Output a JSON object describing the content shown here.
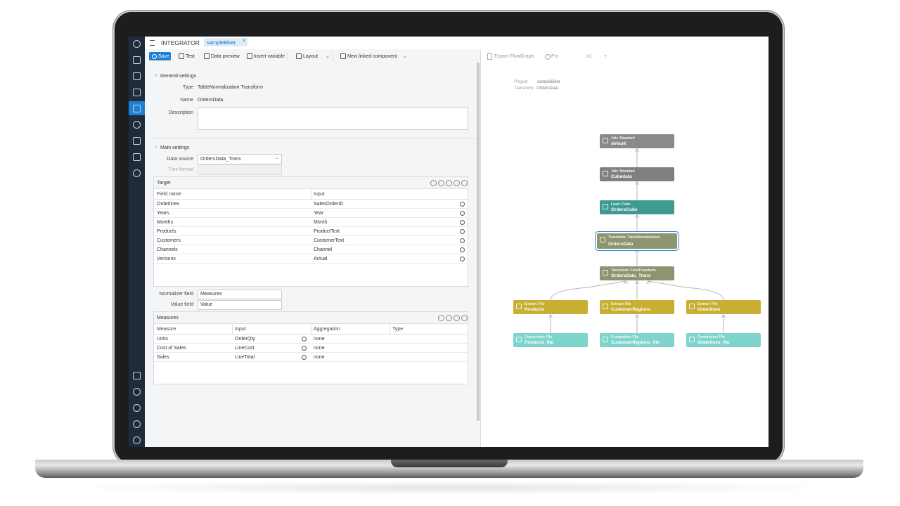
{
  "app": {
    "name": "INTEGRATOR",
    "tab": "sampleBiker",
    "tab_close": "×"
  },
  "toolbar": [
    "Save",
    "Test",
    "Data preview",
    "Insert variable",
    "Layout",
    "New linked component"
  ],
  "general_settings": {
    "title": "General settings",
    "type_label": "Type",
    "type_value": "TableNormalization Transform",
    "name_label": "Name",
    "name_value": "OrdersData",
    "description_label": "Description"
  },
  "main_settings": {
    "title": "Main settings",
    "data_source_label": "Data source",
    "data_source_value": "OrdersData_Trans",
    "tree_format_label": "Tree format"
  },
  "target": {
    "title": "Target",
    "columns": [
      "Field name",
      "Input"
    ],
    "rows": [
      [
        "Orderlines",
        "SalesOrderID"
      ],
      [
        "Years",
        "Year"
      ],
      [
        "Months",
        "Month"
      ],
      [
        "Products",
        "ProductText"
      ],
      [
        "Customers",
        "CustomerText"
      ],
      [
        "Channels",
        "Channel"
      ],
      [
        "Versions",
        "Actual"
      ]
    ]
  },
  "normalizer": {
    "normalizer_field_label": "Normalizer field",
    "normalizer_field_value": "Measures",
    "value_field_label": "Value field",
    "value_field_value": "Value"
  },
  "measures": {
    "title": "Measures",
    "columns": [
      "Measure",
      "Input",
      "Aggregation",
      "Type"
    ],
    "rows": [
      [
        "Units",
        "OrderQty",
        "none"
      ],
      [
        "Cost of Sales",
        "LineCost",
        "none"
      ],
      [
        "Sales",
        "LineTotal",
        "none"
      ]
    ]
  },
  "flowgraph": {
    "toolbar": [
      "Export FlowGraph",
      "Pin",
      "-",
      "x1",
      "+"
    ],
    "project_label": "Project:",
    "project": "sampleBiker",
    "transform_label": "Transform:",
    "transform": "OrdersData",
    "nodes": [
      {
        "type": "Job: Standard",
        "label": "default",
        "color": "#8a8a8a"
      },
      {
        "type": "Job: Standard",
        "label": "Cubedata",
        "color": "#808080"
      },
      {
        "type": "Load: Cube",
        "label": "OrdersCube",
        "color": "#3f9a92"
      },
      {
        "type": "Transform: TableNormalization",
        "label": "OrdersData",
        "color": "#8d9470"
      },
      {
        "type": "Transform: FieldTransform",
        "label": "OrdersData_Trans",
        "color": "#8d9470"
      },
      {
        "type": "Extract: File",
        "label": "Products",
        "color": "#c9ae34"
      },
      {
        "type": "Extract: File",
        "label": "CustomerRegions",
        "color": "#c9ae34"
      },
      {
        "type": "Extract: File",
        "label": "Orderlines",
        "color": "#c9ae34"
      },
      {
        "type": "Connection: File",
        "label": "Products_file",
        "color": "#7fd4cc"
      },
      {
        "type": "Connection: File",
        "label": "CustomerRegions_file",
        "color": "#7fd4cc"
      },
      {
        "type": "Connection: File",
        "label": "Orderlines_file",
        "color": "#7fd4cc"
      }
    ]
  }
}
